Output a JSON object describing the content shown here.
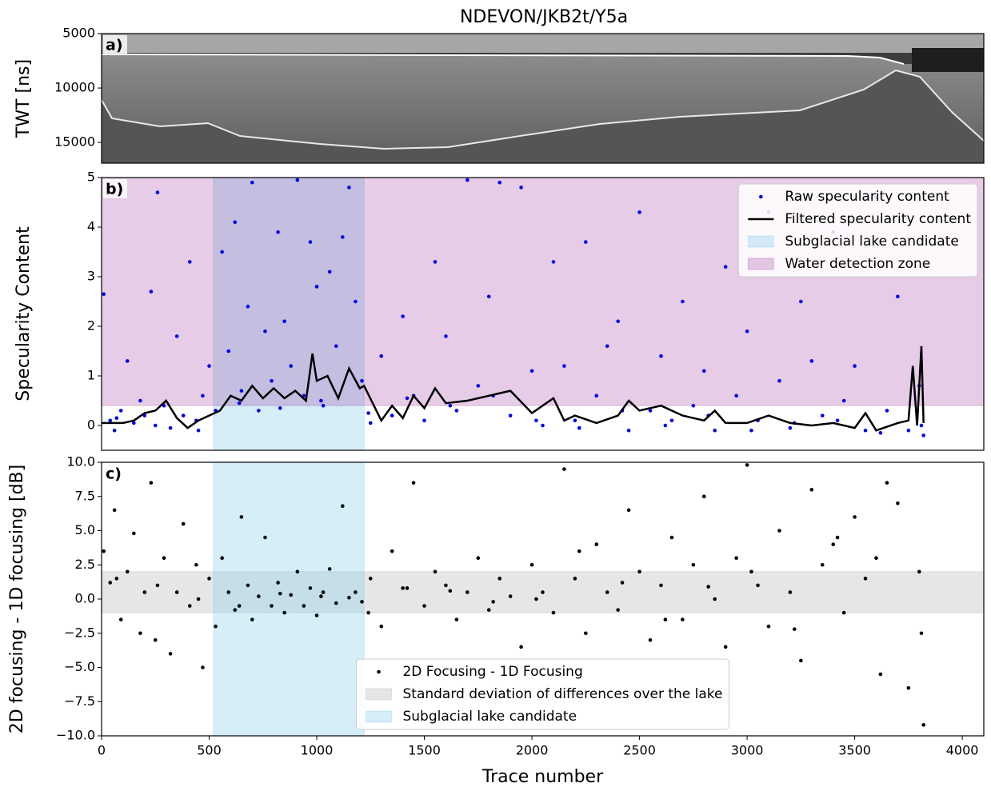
{
  "title": "NDEVON/JKB2t/Y5a",
  "chart_data": [
    {
      "type": "image",
      "label": "a)",
      "ylabel": "TWT [ns]",
      "xlim": [
        0,
        4100
      ],
      "ylim": [
        16900,
        5000
      ],
      "yticks": [
        5000,
        10000,
        15000
      ]
    },
    {
      "type": "scatter",
      "label": "b)",
      "ylabel": "Specularity Content",
      "xlim": [
        0,
        4100
      ],
      "ylim": [
        -0.5,
        5
      ],
      "yticks": [
        0,
        1,
        2,
        3,
        4,
        5
      ],
      "legend": "upper right",
      "spans": [
        {
          "name": "Subglacial lake candidate",
          "color": "skyblue",
          "alpha": 0.35,
          "x": [
            520,
            1220
          ]
        },
        {
          "name": "Water detection zone",
          "color": "purple",
          "alpha": 0.2,
          "y": [
            0.4,
            5
          ]
        }
      ],
      "series": [
        {
          "name": "Raw specularity content",
          "type": "scatter",
          "color": "#0000ee",
          "x": [
            10,
            40,
            60,
            90,
            120,
            150,
            180,
            200,
            230,
            260,
            290,
            320,
            350,
            380,
            410,
            440,
            470,
            500,
            530,
            560,
            590,
            620,
            650,
            680,
            700,
            730,
            760,
            790,
            820,
            850,
            880,
            910,
            940,
            970,
            1000,
            1030,
            1060,
            1090,
            1120,
            1150,
            1180,
            1210,
            1250,
            1300,
            1350,
            1400,
            1450,
            1500,
            1550,
            1600,
            1650,
            1700,
            1750,
            1800,
            1850,
            1900,
            1950,
            2000,
            2050,
            2100,
            2150,
            2200,
            2250,
            2300,
            2350,
            2400,
            2450,
            2500,
            2550,
            2600,
            2650,
            2700,
            2750,
            2800,
            2850,
            2900,
            2950,
            3000,
            3050,
            3100,
            3150,
            3200,
            3250,
            3300,
            3350,
            3400,
            3450,
            3500,
            3550,
            3600,
            3650,
            3700,
            3750,
            3800,
            3820,
            70,
            250,
            450,
            640,
            830,
            1020,
            1240,
            1420,
            1620,
            1820,
            2020,
            2220,
            2420,
            2620,
            2820,
            3020,
            3220,
            3420,
            3620,
            3810
          ],
          "values": [
            2.65,
            0.1,
            -0.1,
            0.3,
            1.3,
            0.05,
            0.5,
            0.2,
            2.7,
            4.7,
            0.4,
            -0.05,
            1.8,
            0.2,
            3.3,
            0.1,
            0.6,
            1.2,
            0.3,
            3.5,
            1.5,
            4.1,
            0.7,
            2.4,
            4.9,
            0.3,
            1.9,
            0.9,
            3.9,
            2.1,
            1.2,
            4.95,
            0.6,
            3.7,
            2.8,
            0.4,
            3.1,
            1.6,
            3.8,
            4.8,
            2.5,
            0.9,
            0.05,
            1.4,
            0.2,
            2.2,
            0.6,
            0.1,
            3.3,
            1.8,
            0.3,
            4.95,
            0.8,
            2.6,
            4.9,
            0.2,
            4.8,
            1.1,
            0.0,
            3.3,
            1.2,
            0.1,
            3.7,
            0.6,
            1.6,
            2.1,
            -0.1,
            4.3,
            0.3,
            1.4,
            0.1,
            2.5,
            0.4,
            1.1,
            -0.1,
            3.2,
            0.6,
            1.9,
            0.1,
            4.3,
            0.9,
            -0.05,
            2.5,
            1.3,
            0.2,
            3.9,
            0.5,
            1.2,
            -0.1,
            4.6,
            0.3,
            2.6,
            -0.1,
            0.8,
            -0.2,
            0.15,
            0.0,
            -0.1,
            0.45,
            0.35,
            0.5,
            0.25,
            0.55,
            0.4,
            0.6,
            0.1,
            -0.05,
            0.3,
            0.0,
            0.2,
            -0.1,
            0.05,
            0.1,
            -0.15,
            0.0
          ]
        },
        {
          "name": "Filtered specularity content",
          "type": "line",
          "color": "#000000",
          "x": [
            0,
            100,
            150,
            200,
            250,
            300,
            350,
            400,
            450,
            500,
            550,
            600,
            650,
            700,
            750,
            800,
            850,
            900,
            950,
            980,
            1000,
            1050,
            1100,
            1150,
            1200,
            1220,
            1300,
            1350,
            1400,
            1450,
            1500,
            1550,
            1600,
            1700,
            1800,
            1900,
            2000,
            2100,
            2150,
            2200,
            2300,
            2400,
            2450,
            2500,
            2600,
            2700,
            2800,
            2850,
            2900,
            3000,
            3100,
            3200,
            3300,
            3400,
            3500,
            3550,
            3600,
            3700,
            3750,
            3770,
            3790,
            3810,
            3820
          ],
          "values": [
            0.05,
            0.05,
            0.1,
            0.25,
            0.3,
            0.5,
            0.15,
            -0.05,
            0.1,
            0.2,
            0.3,
            0.6,
            0.5,
            0.8,
            0.55,
            0.75,
            0.55,
            0.7,
            0.5,
            1.45,
            0.9,
            1.0,
            0.55,
            1.15,
            0.75,
            0.8,
            0.1,
            0.4,
            0.15,
            0.6,
            0.35,
            0.75,
            0.45,
            0.5,
            0.6,
            0.7,
            0.25,
            0.55,
            0.1,
            0.2,
            0.05,
            0.2,
            0.5,
            0.3,
            0.4,
            0.2,
            0.1,
            0.3,
            0.05,
            0.05,
            0.2,
            0.05,
            0.0,
            0.05,
            -0.05,
            0.25,
            -0.1,
            0.05,
            0.1,
            1.2,
            0.0,
            1.6,
            0.05
          ]
        }
      ]
    },
    {
      "type": "scatter",
      "label": "c)",
      "xlabel": "Trace number",
      "ylabel": "2D focusing - 1D focusing [dB]",
      "xlim": [
        0,
        4100
      ],
      "ylim": [
        -10,
        10
      ],
      "xticks": [
        0,
        500,
        1000,
        1500,
        2000,
        2500,
        3000,
        3500,
        4000
      ],
      "yticks": [
        {
          "value": -10,
          "label": "−10.0"
        },
        {
          "value": -7.5,
          "label": "−7.5"
        },
        {
          "value": -5,
          "label": "−5.0"
        },
        {
          "value": -2.5,
          "label": "−2.5"
        },
        {
          "value": 0,
          "label": "0.0"
        },
        {
          "value": 2.5,
          "label": "2.5"
        },
        {
          "value": 5,
          "label": "5.0"
        },
        {
          "value": 7.5,
          "label": "7.5"
        },
        {
          "value": 10,
          "label": "10.0"
        }
      ],
      "legend": "lower center",
      "spans": [
        {
          "name": "Standard deviation of differences over the lake",
          "color": "gray",
          "alpha": 0.2,
          "y": [
            -1,
            2
          ]
        },
        {
          "name": "Subglacial lake candidate",
          "color": "skyblue",
          "alpha": 0.35,
          "x": [
            520,
            1220
          ]
        }
      ],
      "series": [
        {
          "name": "2D Focusing - 1D Focusing",
          "type": "scatter",
          "color": "#000000",
          "x": [
            10,
            40,
            60,
            90,
            120,
            150,
            180,
            200,
            230,
            260,
            290,
            320,
            350,
            380,
            410,
            440,
            470,
            500,
            530,
            560,
            590,
            620,
            650,
            680,
            700,
            730,
            760,
            790,
            820,
            850,
            880,
            910,
            940,
            970,
            1000,
            1030,
            1060,
            1090,
            1120,
            1150,
            1180,
            1210,
            1250,
            1300,
            1350,
            1400,
            1450,
            1500,
            1550,
            1600,
            1650,
            1700,
            1750,
            1800,
            1850,
            1900,
            1950,
            2000,
            2050,
            2100,
            2150,
            2200,
            2250,
            2300,
            2350,
            2400,
            2450,
            2500,
            2550,
            2600,
            2650,
            2700,
            2750,
            2800,
            2850,
            2900,
            2950,
            3000,
            3050,
            3100,
            3150,
            3200,
            3250,
            3300,
            3350,
            3400,
            3450,
            3500,
            3550,
            3600,
            3650,
            3700,
            3750,
            3800,
            3820,
            70,
            250,
            450,
            640,
            830,
            1020,
            1240,
            1420,
            1620,
            1820,
            2020,
            2220,
            2420,
            2620,
            2820,
            3020,
            3220,
            3420,
            3620,
            3810
          ],
          "values": [
            3.5,
            1.2,
            6.5,
            -1.5,
            2.0,
            4.8,
            -2.5,
            0.5,
            8.5,
            1.0,
            3.0,
            -4.0,
            0.5,
            5.5,
            -0.5,
            2.5,
            -5.0,
            1.5,
            -2.0,
            3.0,
            0.5,
            -0.8,
            6.0,
            1.0,
            -1.5,
            0.2,
            4.5,
            -0.5,
            1.2,
            -1.0,
            0.3,
            2.0,
            -0.5,
            0.8,
            -1.2,
            0.5,
            2.2,
            -0.3,
            6.8,
            0.1,
            0.5,
            -0.2,
            1.5,
            -2.0,
            3.5,
            0.8,
            8.5,
            -0.5,
            2.0,
            1.0,
            -1.5,
            0.5,
            3.0,
            -0.8,
            1.5,
            0.2,
            -3.5,
            2.5,
            0.5,
            -1.0,
            9.5,
            1.5,
            -2.5,
            4.0,
            0.5,
            -0.8,
            6.5,
            2.0,
            -3.0,
            1.0,
            4.5,
            -1.5,
            2.5,
            7.5,
            0.0,
            -3.5,
            3.0,
            9.8,
            1.0,
            -2.0,
            5.0,
            0.5,
            -4.5,
            8.0,
            2.5,
            4.0,
            -1.0,
            6.0,
            1.5,
            3.0,
            8.5,
            7.0,
            -6.5,
            2.0,
            -9.2,
            1.5,
            -3.0,
            0.0,
            -0.5,
            0.4,
            0.2,
            -1.0,
            0.8,
            0.6,
            -0.2,
            0.0,
            3.5,
            1.2,
            -1.5,
            0.9,
            2.0,
            -2.2,
            4.5,
            -5.5,
            -2.5
          ]
        }
      ]
    }
  ]
}
